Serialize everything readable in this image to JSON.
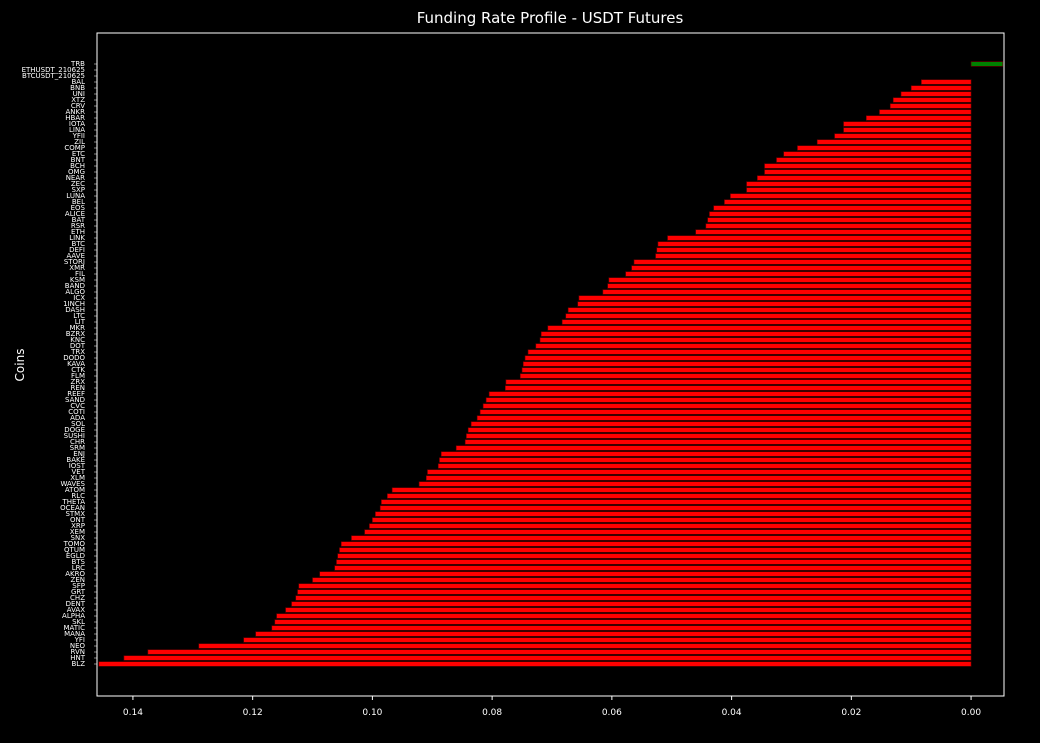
{
  "chart_data": {
    "type": "barh",
    "title": "Funding Rate Profile - USDT Futures",
    "ylabel": "Coins",
    "categories": [
      "TRB",
      "ETHUSDT_210625",
      "BTCUSDT_210625",
      "BAL",
      "BNB",
      "UNI",
      "XTZ",
      "CRV",
      "ANKR",
      "HBAR",
      "IOTA",
      "LINA",
      "YFII",
      "ZIL",
      "COMP",
      "ETC",
      "BNT",
      "BCH",
      "OMG",
      "NEAR",
      "ZEC",
      "SXP",
      "LUNA",
      "BEL",
      "EOS",
      "ALICE",
      "BAT",
      "RSR",
      "ETH",
      "LINK",
      "BTC",
      "DEFI",
      "AAVE",
      "STORJ",
      "XMR",
      "FIL",
      "KSM",
      "BAND",
      "ALGO",
      "ICX",
      "1INCH",
      "DASH",
      "LTC",
      "LIT",
      "MKR",
      "BZRX",
      "KNC",
      "DOT",
      "TRX",
      "DODO",
      "KAVA",
      "CTK",
      "FLM",
      "ZRX",
      "REN",
      "REEF",
      "SAND",
      "CVC",
      "COTI",
      "ADA",
      "SOL",
      "DOGE",
      "SUSHI",
      "CHR",
      "SRM",
      "ENJ",
      "BAKE",
      "IOST",
      "VET",
      "XLM",
      "WAVES",
      "ATOM",
      "RLC",
      "THETA",
      "OCEAN",
      "STMX",
      "ONT",
      "XRP",
      "XEM",
      "SNX",
      "TOMO",
      "QTUM",
      "EGLD",
      "BTS",
      "LRC",
      "AKRO",
      "ZEN",
      "SFP",
      "GRT",
      "CHZ",
      "DENT",
      "AVAX",
      "ALPHA",
      "SKL",
      "MATIC",
      "MANA",
      "YFI",
      "NEO",
      "RVN",
      "HNT",
      "BLZ"
    ],
    "values": [
      -0.0053,
      0,
      0,
      0.0083,
      0.01,
      0.0117,
      0.013,
      0.0135,
      0.0153,
      0.0175,
      0.0213,
      0.0213,
      0.0228,
      0.0257,
      0.029,
      0.0313,
      0.0325,
      0.0345,
      0.0345,
      0.0357,
      0.0375,
      0.0375,
      0.0402,
      0.0412,
      0.043,
      0.0437,
      0.044,
      0.0443,
      0.046,
      0.0507,
      0.0523,
      0.0525,
      0.0527,
      0.0563,
      0.0567,
      0.0577,
      0.0605,
      0.0607,
      0.0615,
      0.0655,
      0.0657,
      0.0673,
      0.0677,
      0.0683,
      0.0707,
      0.0718,
      0.072,
      0.0727,
      0.074,
      0.0745,
      0.0748,
      0.075,
      0.0753,
      0.0777,
      0.0778,
      0.0805,
      0.081,
      0.0815,
      0.082,
      0.0825,
      0.0835,
      0.084,
      0.0843,
      0.0845,
      0.086,
      0.0885,
      0.0888,
      0.089,
      0.0908,
      0.091,
      0.0922,
      0.0967,
      0.0975,
      0.0985,
      0.0987,
      0.0995,
      0.1,
      0.1005,
      0.1013,
      0.1035,
      0.1052,
      0.1055,
      0.1058,
      0.106,
      0.1063,
      0.1088,
      0.11,
      0.1123,
      0.1125,
      0.1128,
      0.1135,
      0.1145,
      0.116,
      0.1163,
      0.1168,
      0.1195,
      0.1215,
      0.129,
      0.1375,
      0.1415,
      0.1457
    ],
    "color": "#ff0000",
    "negative_color": "#008000",
    "xlim": [
      0.146,
      -0.0055
    ],
    "xticks": [
      0.14,
      0.12,
      {
        "value": 0.1,
        "label": "0.10"
      },
      0.08,
      0.06,
      0.04,
      0.02,
      {
        "value": 0,
        "label": "0.00"
      }
    ]
  }
}
